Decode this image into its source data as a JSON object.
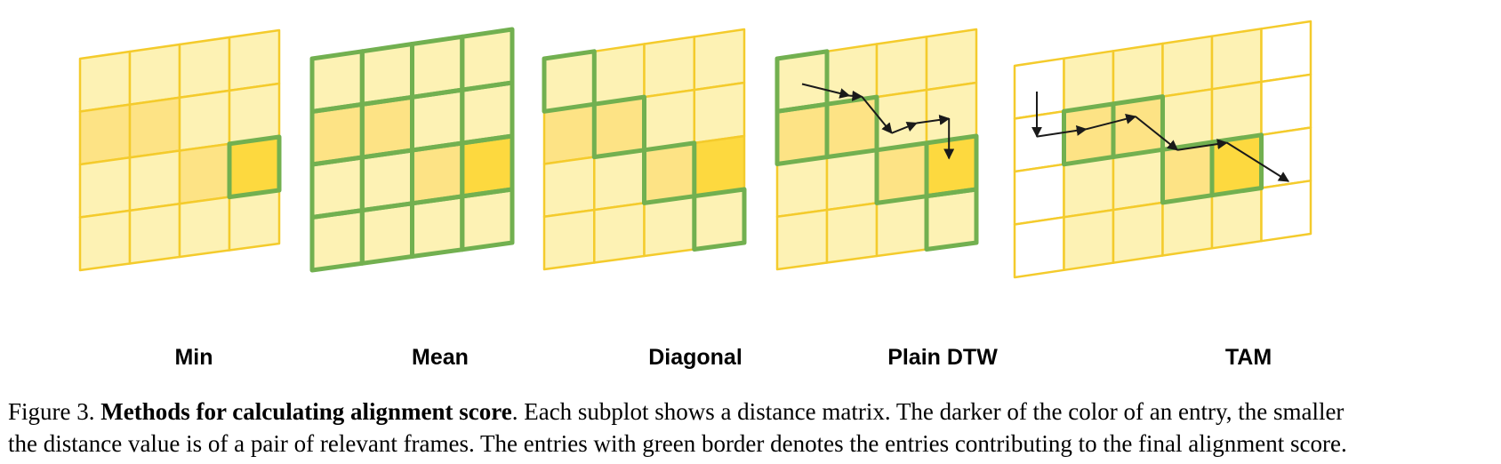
{
  "figure": {
    "panels": [
      {
        "label": "Min",
        "rows": 4,
        "cols": 4,
        "shades": [
          [
            1,
            1,
            1,
            1
          ],
          [
            2,
            2,
            1,
            1
          ],
          [
            1,
            1,
            2,
            3
          ],
          [
            1,
            1,
            1,
            1
          ]
        ],
        "green_cells": [
          [
            2,
            3
          ]
        ],
        "path": []
      },
      {
        "label": "Mean",
        "rows": 4,
        "cols": 4,
        "shades": [
          [
            1,
            1,
            1,
            1
          ],
          [
            2,
            2,
            1,
            1
          ],
          [
            1,
            1,
            2,
            3
          ],
          [
            1,
            1,
            1,
            1
          ]
        ],
        "green_cells": "all",
        "path": []
      },
      {
        "label": "Diagonal",
        "rows": 4,
        "cols": 4,
        "shades": [
          [
            1,
            1,
            1,
            1
          ],
          [
            2,
            2,
            1,
            1
          ],
          [
            1,
            1,
            2,
            3
          ],
          [
            1,
            1,
            1,
            1
          ]
        ],
        "green_cells": [
          [
            0,
            0
          ],
          [
            1,
            1
          ],
          [
            2,
            2
          ],
          [
            3,
            3
          ]
        ],
        "path": []
      },
      {
        "label": "Plain DTW",
        "rows": 4,
        "cols": 4,
        "shades": [
          [
            1,
            1,
            1,
            1
          ],
          [
            2,
            2,
            1,
            1
          ],
          [
            1,
            1,
            2,
            3
          ],
          [
            1,
            1,
            1,
            1
          ]
        ],
        "green_cells": [
          [
            0,
            0
          ],
          [
            1,
            0
          ],
          [
            1,
            1
          ],
          [
            2,
            2
          ],
          [
            2,
            3
          ],
          [
            3,
            3
          ]
        ],
        "path": [
          [
            0.5,
            0.55
          ],
          [
            1.45,
            0.9
          ],
          [
            1.7,
            0.95
          ],
          [
            2.3,
            1.72
          ],
          [
            2.8,
            1.6
          ],
          [
            3.45,
            1.6
          ],
          [
            3.45,
            2.35
          ]
        ]
      },
      {
        "label": "TAM",
        "rows": 4,
        "cols": 6,
        "shades": [
          [
            0,
            1,
            1,
            1,
            1,
            0
          ],
          [
            0,
            2,
            2,
            1,
            1,
            0
          ],
          [
            0,
            1,
            1,
            2,
            3,
            0
          ],
          [
            0,
            1,
            1,
            1,
            1,
            0
          ]
        ],
        "green_cells": [
          [
            1,
            1
          ],
          [
            1,
            2
          ],
          [
            2,
            3
          ],
          [
            2,
            4
          ]
        ],
        "path": [
          [
            0.45,
            0.55
          ],
          [
            0.45,
            1.4
          ],
          [
            1.45,
            1.4
          ],
          [
            2.45,
            1.3
          ],
          [
            3.3,
            2.05
          ],
          [
            4.3,
            2.05
          ],
          [
            5.55,
            2.95
          ]
        ]
      }
    ],
    "colors": {
      "empty": "#ffffff",
      "light": "#fdf2b4",
      "medium": "#fde385",
      "dark": "#fdd93f",
      "grid_line": "#f4cb2c",
      "green_border": "#72b050",
      "arrow": "#1a1a1a"
    }
  },
  "caption": {
    "prefix": "Figure 3. ",
    "title": "Methods for calculating alignment score",
    "line1_rest": ". Each subplot shows a distance matrix. The darker of the color of an entry, the smaller",
    "line2": "the distance value is of a pair of relevant frames. The entries with green border denotes the entries contributing to the final alignment score."
  }
}
